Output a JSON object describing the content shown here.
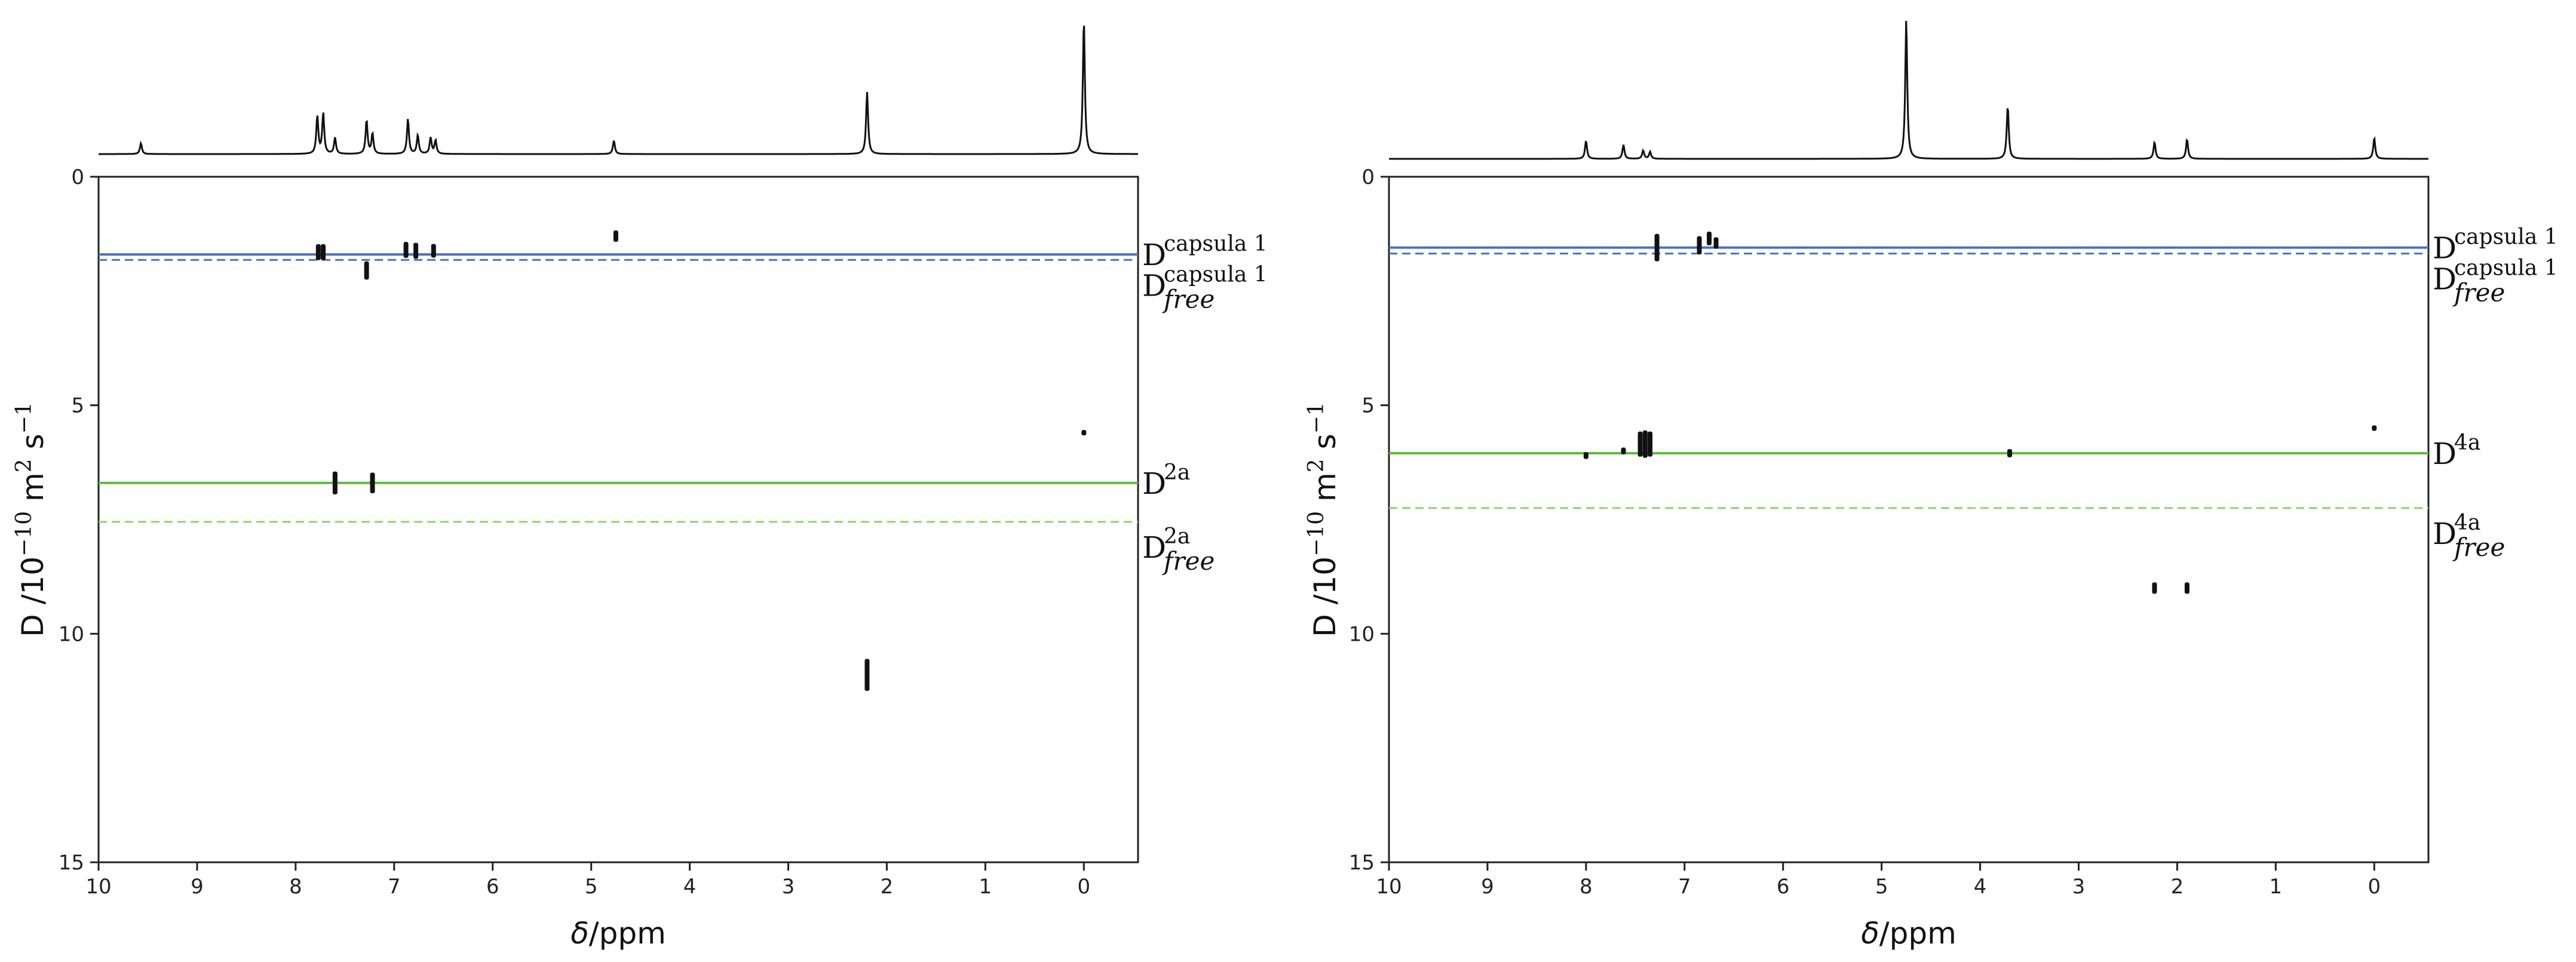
{
  "chart_data": [
    {
      "type": "dosy",
      "panel": "left",
      "xlabel_italic": "δ",
      "xlabel_rest": "/ppm",
      "ylabel": "D /10",
      "ylabel_exp": "−10",
      "ylabel_units": " m",
      "ylabel_units_exp": "2",
      "ylabel_units2": " s",
      "ylabel_units2_exp": "−1",
      "xlim": [
        10.0,
        -0.55
      ],
      "ylim": [
        0,
        15
      ],
      "xticks": [
        "10",
        "9",
        "8",
        "7",
        "6",
        "5",
        "4",
        "3",
        "2",
        "1",
        "0"
      ],
      "yticks": [
        "0",
        "5",
        "10",
        "15"
      ],
      "reference_lines": [
        {
          "D": 1.7,
          "style": "solid",
          "color": "#4a6fc4",
          "label_main": "D",
          "label_sup": "capsula 1",
          "label_sub": ""
        },
        {
          "D": 1.82,
          "style": "dashed",
          "color": "#4a6fc4",
          "label_main": "D",
          "label_sup": "capsula 1",
          "label_sub": "free"
        },
        {
          "D": 6.7,
          "style": "solid",
          "color": "#5bbf3a",
          "label_main": "D",
          "label_sup": "2a",
          "label_sub": ""
        },
        {
          "D": 7.55,
          "style": "dashed",
          "color": "#8fd26a",
          "label_main": "D",
          "label_sup": "2a",
          "label_sub": "free"
        }
      ],
      "spectrum_peaks": [
        {
          "ppm": 9.57,
          "h": 0.08
        },
        {
          "ppm": 7.78,
          "h": 0.28
        },
        {
          "ppm": 7.72,
          "h": 0.3
        },
        {
          "ppm": 7.6,
          "h": 0.12
        },
        {
          "ppm": 7.28,
          "h": 0.25
        },
        {
          "ppm": 7.22,
          "h": 0.15
        },
        {
          "ppm": 6.86,
          "h": 0.26
        },
        {
          "ppm": 6.76,
          "h": 0.14
        },
        {
          "ppm": 6.63,
          "h": 0.12
        },
        {
          "ppm": 6.58,
          "h": 0.1
        },
        {
          "ppm": 4.77,
          "h": 0.1
        },
        {
          "ppm": 2.2,
          "h": 0.46
        },
        {
          "ppm": 0.0,
          "h": 1.0
        }
      ],
      "contours": [
        {
          "ppm": 7.77,
          "D": 1.65,
          "len": 0.35
        },
        {
          "ppm": 7.72,
          "D": 1.65,
          "len": 0.35
        },
        {
          "ppm": 6.88,
          "D": 1.6,
          "len": 0.35
        },
        {
          "ppm": 6.78,
          "D": 1.62,
          "len": 0.35
        },
        {
          "ppm": 6.6,
          "D": 1.62,
          "len": 0.3
        },
        {
          "ppm": 4.75,
          "D": 1.3,
          "len": 0.25
        },
        {
          "ppm": 7.28,
          "D": 2.05,
          "len": 0.4
        },
        {
          "ppm": 7.6,
          "D": 6.7,
          "len": 0.5
        },
        {
          "ppm": 7.22,
          "D": 6.7,
          "len": 0.45
        },
        {
          "ppm": 0.0,
          "D": 5.6,
          "len": 0.12
        },
        {
          "ppm": 2.2,
          "D": 10.9,
          "len": 0.7
        }
      ]
    },
    {
      "type": "dosy",
      "panel": "right",
      "xlabel_italic": "δ",
      "xlabel_rest": "/ppm",
      "ylabel": "D /10",
      "ylabel_exp": "−10",
      "ylabel_units": " m",
      "ylabel_units_exp": "2",
      "ylabel_units2": " s",
      "ylabel_units2_exp": "−1",
      "xlim": [
        10.0,
        -0.55
      ],
      "ylim": [
        0,
        15
      ],
      "xticks": [
        "10",
        "9",
        "8",
        "7",
        "6",
        "5",
        "4",
        "3",
        "2",
        "1",
        "0"
      ],
      "yticks": [
        "0",
        "5",
        "10",
        "15"
      ],
      "reference_lines": [
        {
          "D": 1.55,
          "style": "solid",
          "color": "#4a6fc4",
          "label_main": "D",
          "label_sup": "capsula 1",
          "label_sub": ""
        },
        {
          "D": 1.68,
          "style": "dashed",
          "color": "#4a6fc4",
          "label_main": "D",
          "label_sup": "capsula 1",
          "label_sub": "free"
        },
        {
          "D": 6.05,
          "style": "solid",
          "color": "#5bbf3a",
          "label_main": "D",
          "label_sup": "4a",
          "label_sub": ""
        },
        {
          "D": 7.25,
          "style": "dashed",
          "color": "#8fd26a",
          "label_main": "D",
          "label_sup": "4a",
          "label_sub": "free"
        }
      ],
      "spectrum_peaks": [
        {
          "ppm": 8.0,
          "h": 0.13
        },
        {
          "ppm": 7.62,
          "h": 0.1
        },
        {
          "ppm": 7.42,
          "h": 0.06
        },
        {
          "ppm": 7.35,
          "h": 0.05
        },
        {
          "ppm": 4.75,
          "h": 1.0
        },
        {
          "ppm": 3.72,
          "h": 0.38
        },
        {
          "ppm": 2.23,
          "h": 0.12
        },
        {
          "ppm": 1.9,
          "h": 0.14
        },
        {
          "ppm": 0.0,
          "h": 0.15
        }
      ],
      "contours": [
        {
          "ppm": 7.28,
          "D": 1.55,
          "len": 0.6
        },
        {
          "ppm": 6.85,
          "D": 1.5,
          "len": 0.4
        },
        {
          "ppm": 6.75,
          "D": 1.35,
          "len": 0.3
        },
        {
          "ppm": 6.68,
          "D": 1.45,
          "len": 0.25
        },
        {
          "ppm": 8.0,
          "D": 6.1,
          "len": 0.15
        },
        {
          "ppm": 7.62,
          "D": 6.0,
          "len": 0.15
        },
        {
          "ppm": 7.45,
          "D": 5.85,
          "len": 0.55
        },
        {
          "ppm": 7.4,
          "D": 5.85,
          "len": 0.6
        },
        {
          "ppm": 7.35,
          "D": 5.85,
          "len": 0.55
        },
        {
          "ppm": 3.7,
          "D": 6.05,
          "len": 0.18
        },
        {
          "ppm": 0.0,
          "D": 5.5,
          "len": 0.12
        },
        {
          "ppm": 2.23,
          "D": 9.0,
          "len": 0.25
        },
        {
          "ppm": 1.9,
          "D": 9.0,
          "len": 0.25
        }
      ]
    }
  ]
}
